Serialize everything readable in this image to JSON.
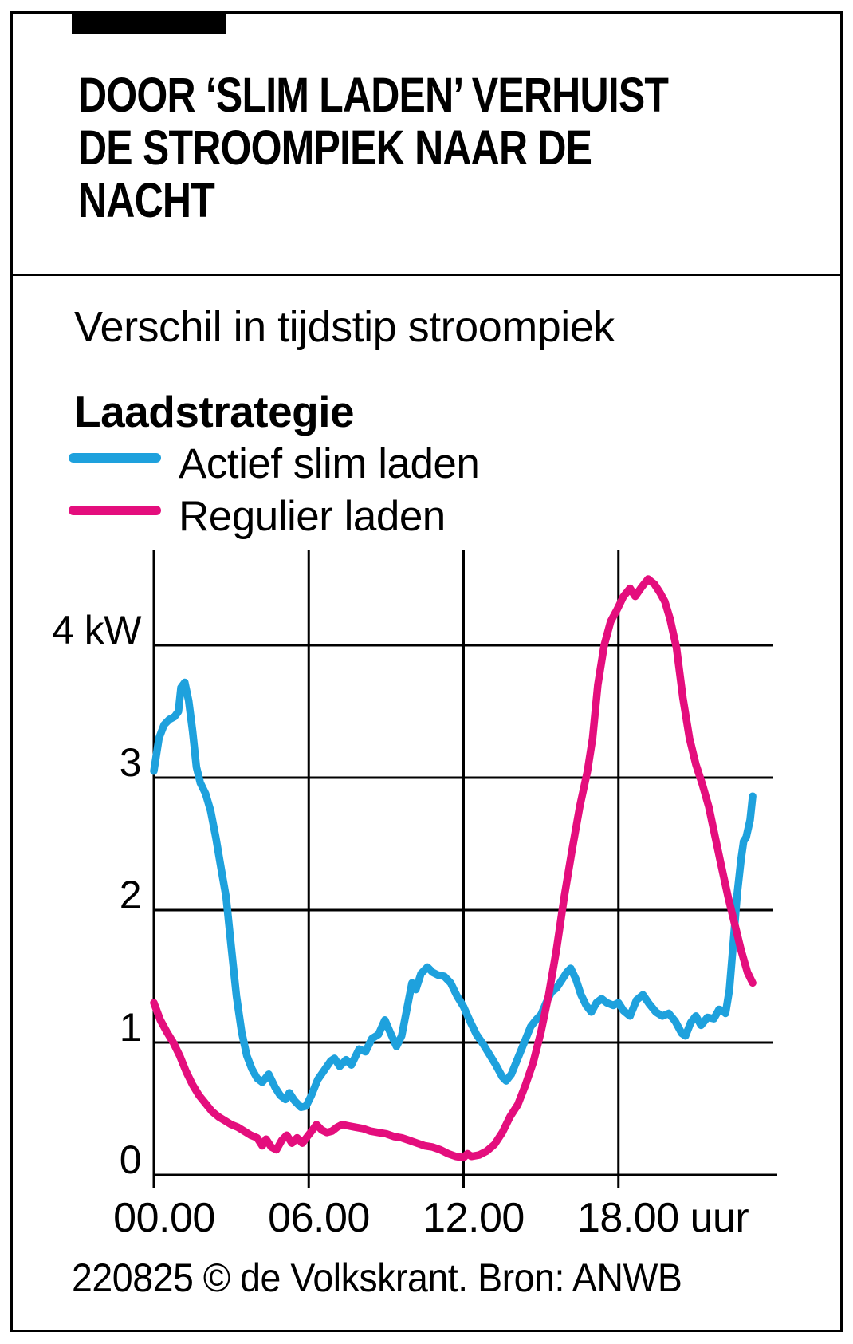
{
  "header": {
    "title_lines": [
      "DOOR ‘SLIM LADEN’ VERHUIST",
      "DE STROOMPIEK NAAR DE",
      "NACHT"
    ]
  },
  "footer": {
    "credit": "220825 © de Volkskrant. Bron: ANWB"
  },
  "colors": {
    "actief_slim_laden": "#1EA1DD",
    "regulier_laden": "#E40E7D",
    "grid": "#000000"
  },
  "chart_data": {
    "type": "line",
    "title": "Verschil in tijdstip stroompiek",
    "legend_title": "Laadstrategie",
    "xlabel": "uur",
    "ylabel": "kW",
    "xlim_hours": [
      0,
      24
    ],
    "ylim_kw": [
      0,
      5
    ],
    "grid": true,
    "legend_position": "top-left",
    "yticks": [
      {
        "value": 4,
        "label": "4 kW"
      },
      {
        "value": 3,
        "label": "3"
      },
      {
        "value": 2,
        "label": "2"
      },
      {
        "value": 1,
        "label": "1"
      },
      {
        "value": 0,
        "label": "0"
      }
    ],
    "xticks": [
      {
        "hour": 0,
        "label": "00.00"
      },
      {
        "hour": 6,
        "label": "06.00"
      },
      {
        "hour": 12,
        "label": "12.00"
      },
      {
        "hour": 18,
        "label": "18.00 uur"
      }
    ],
    "series": [
      {
        "name": "Actief slim laden",
        "color": "#1EA1DD",
        "points": [
          [
            0.0,
            3.05
          ],
          [
            0.2,
            3.3
          ],
          [
            0.4,
            3.4
          ],
          [
            0.6,
            3.44
          ],
          [
            0.8,
            3.46
          ],
          [
            0.95,
            3.5
          ],
          [
            1.05,
            3.68
          ],
          [
            1.2,
            3.72
          ],
          [
            1.35,
            3.58
          ],
          [
            1.5,
            3.35
          ],
          [
            1.65,
            3.08
          ],
          [
            1.8,
            2.96
          ],
          [
            2.0,
            2.88
          ],
          [
            2.2,
            2.75
          ],
          [
            2.4,
            2.55
          ],
          [
            2.6,
            2.32
          ],
          [
            2.8,
            2.1
          ],
          [
            3.0,
            1.72
          ],
          [
            3.2,
            1.35
          ],
          [
            3.4,
            1.08
          ],
          [
            3.6,
            0.9
          ],
          [
            3.8,
            0.8
          ],
          [
            4.0,
            0.73
          ],
          [
            4.2,
            0.7
          ],
          [
            4.45,
            0.76
          ],
          [
            4.7,
            0.66
          ],
          [
            4.9,
            0.6
          ],
          [
            5.1,
            0.57
          ],
          [
            5.25,
            0.62
          ],
          [
            5.45,
            0.56
          ],
          [
            5.7,
            0.51
          ],
          [
            5.9,
            0.52
          ],
          [
            6.1,
            0.6
          ],
          [
            6.35,
            0.72
          ],
          [
            6.6,
            0.79
          ],
          [
            6.85,
            0.86
          ],
          [
            7.0,
            0.88
          ],
          [
            7.2,
            0.82
          ],
          [
            7.45,
            0.87
          ],
          [
            7.65,
            0.83
          ],
          [
            7.95,
            0.95
          ],
          [
            8.2,
            0.93
          ],
          [
            8.45,
            1.03
          ],
          [
            8.7,
            1.06
          ],
          [
            8.95,
            1.17
          ],
          [
            9.15,
            1.08
          ],
          [
            9.4,
            0.97
          ],
          [
            9.6,
            1.05
          ],
          [
            9.8,
            1.25
          ],
          [
            10.0,
            1.45
          ],
          [
            10.15,
            1.4
          ],
          [
            10.35,
            1.52
          ],
          [
            10.6,
            1.57
          ],
          [
            10.8,
            1.53
          ],
          [
            11.0,
            1.51
          ],
          [
            11.25,
            1.5
          ],
          [
            11.5,
            1.45
          ],
          [
            11.75,
            1.35
          ],
          [
            12.0,
            1.27
          ],
          [
            12.25,
            1.16
          ],
          [
            12.5,
            1.06
          ],
          [
            12.75,
            0.99
          ],
          [
            13.0,
            0.91
          ],
          [
            13.25,
            0.83
          ],
          [
            13.5,
            0.74
          ],
          [
            13.65,
            0.71
          ],
          [
            13.85,
            0.76
          ],
          [
            14.1,
            0.88
          ],
          [
            14.35,
            1.0
          ],
          [
            14.6,
            1.12
          ],
          [
            14.8,
            1.17
          ],
          [
            15.0,
            1.21
          ],
          [
            15.2,
            1.3
          ],
          [
            15.4,
            1.38
          ],
          [
            15.6,
            1.41
          ],
          [
            15.8,
            1.47
          ],
          [
            16.0,
            1.53
          ],
          [
            16.15,
            1.56
          ],
          [
            16.35,
            1.48
          ],
          [
            16.55,
            1.36
          ],
          [
            16.75,
            1.28
          ],
          [
            16.95,
            1.23
          ],
          [
            17.15,
            1.3
          ],
          [
            17.35,
            1.33
          ],
          [
            17.55,
            1.3
          ],
          [
            17.8,
            1.28
          ],
          [
            18.0,
            1.3
          ],
          [
            18.2,
            1.24
          ],
          [
            18.45,
            1.2
          ],
          [
            18.7,
            1.32
          ],
          [
            18.95,
            1.36
          ],
          [
            19.2,
            1.29
          ],
          [
            19.45,
            1.23
          ],
          [
            19.7,
            1.2
          ],
          [
            19.95,
            1.22
          ],
          [
            20.2,
            1.16
          ],
          [
            20.45,
            1.07
          ],
          [
            20.6,
            1.05
          ],
          [
            20.8,
            1.15
          ],
          [
            21.0,
            1.2
          ],
          [
            21.2,
            1.13
          ],
          [
            21.45,
            1.19
          ],
          [
            21.7,
            1.18
          ],
          [
            21.9,
            1.25
          ],
          [
            22.05,
            1.24
          ],
          [
            22.15,
            1.22
          ],
          [
            22.3,
            1.4
          ],
          [
            22.45,
            1.75
          ],
          [
            22.6,
            2.12
          ],
          [
            22.75,
            2.38
          ],
          [
            22.85,
            2.52
          ],
          [
            22.95,
            2.55
          ],
          [
            23.1,
            2.68
          ],
          [
            23.2,
            2.86
          ]
        ]
      },
      {
        "name": "Regulier laden",
        "color": "#E40E7D",
        "points": [
          [
            0.0,
            1.3
          ],
          [
            0.25,
            1.17
          ],
          [
            0.5,
            1.08
          ],
          [
            0.75,
            1.0
          ],
          [
            1.0,
            0.9
          ],
          [
            1.25,
            0.78
          ],
          [
            1.5,
            0.68
          ],
          [
            1.75,
            0.6
          ],
          [
            2.0,
            0.54
          ],
          [
            2.25,
            0.48
          ],
          [
            2.5,
            0.44
          ],
          [
            2.75,
            0.41
          ],
          [
            3.0,
            0.38
          ],
          [
            3.25,
            0.36
          ],
          [
            3.5,
            0.33
          ],
          [
            3.75,
            0.3
          ],
          [
            4.0,
            0.28
          ],
          [
            4.2,
            0.22
          ],
          [
            4.35,
            0.27
          ],
          [
            4.55,
            0.21
          ],
          [
            4.75,
            0.19
          ],
          [
            4.95,
            0.26
          ],
          [
            5.15,
            0.3
          ],
          [
            5.35,
            0.24
          ],
          [
            5.55,
            0.28
          ],
          [
            5.75,
            0.24
          ],
          [
            5.95,
            0.29
          ],
          [
            6.15,
            0.34
          ],
          [
            6.3,
            0.38
          ],
          [
            6.5,
            0.34
          ],
          [
            6.7,
            0.32
          ],
          [
            6.9,
            0.33
          ],
          [
            7.1,
            0.36
          ],
          [
            7.3,
            0.38
          ],
          [
            7.55,
            0.37
          ],
          [
            7.8,
            0.36
          ],
          [
            8.1,
            0.35
          ],
          [
            8.4,
            0.33
          ],
          [
            8.7,
            0.32
          ],
          [
            9.0,
            0.31
          ],
          [
            9.3,
            0.29
          ],
          [
            9.6,
            0.28
          ],
          [
            9.9,
            0.26
          ],
          [
            10.2,
            0.24
          ],
          [
            10.5,
            0.22
          ],
          [
            10.8,
            0.21
          ],
          [
            11.1,
            0.19
          ],
          [
            11.4,
            0.16
          ],
          [
            11.7,
            0.14
          ],
          [
            12.0,
            0.13
          ],
          [
            12.15,
            0.16
          ],
          [
            12.3,
            0.14
          ],
          [
            12.6,
            0.15
          ],
          [
            12.9,
            0.18
          ],
          [
            13.2,
            0.23
          ],
          [
            13.5,
            0.32
          ],
          [
            13.8,
            0.44
          ],
          [
            14.1,
            0.53
          ],
          [
            14.4,
            0.68
          ],
          [
            14.7,
            0.85
          ],
          [
            15.0,
            1.08
          ],
          [
            15.3,
            1.36
          ],
          [
            15.6,
            1.7
          ],
          [
            15.9,
            2.1
          ],
          [
            16.2,
            2.45
          ],
          [
            16.5,
            2.78
          ],
          [
            16.8,
            3.05
          ],
          [
            17.0,
            3.3
          ],
          [
            17.2,
            3.7
          ],
          [
            17.45,
            4.0
          ],
          [
            17.7,
            4.18
          ],
          [
            17.95,
            4.27
          ],
          [
            18.2,
            4.37
          ],
          [
            18.45,
            4.43
          ],
          [
            18.65,
            4.37
          ],
          [
            18.9,
            4.44
          ],
          [
            19.15,
            4.5
          ],
          [
            19.4,
            4.46
          ],
          [
            19.6,
            4.4
          ],
          [
            19.8,
            4.33
          ],
          [
            20.0,
            4.2
          ],
          [
            20.25,
            3.98
          ],
          [
            20.5,
            3.6
          ],
          [
            20.75,
            3.3
          ],
          [
            21.0,
            3.1
          ],
          [
            21.25,
            2.95
          ],
          [
            21.5,
            2.78
          ],
          [
            21.75,
            2.55
          ],
          [
            22.0,
            2.32
          ],
          [
            22.25,
            2.1
          ],
          [
            22.5,
            1.9
          ],
          [
            22.75,
            1.7
          ],
          [
            23.0,
            1.53
          ],
          [
            23.2,
            1.45
          ]
        ]
      }
    ]
  }
}
